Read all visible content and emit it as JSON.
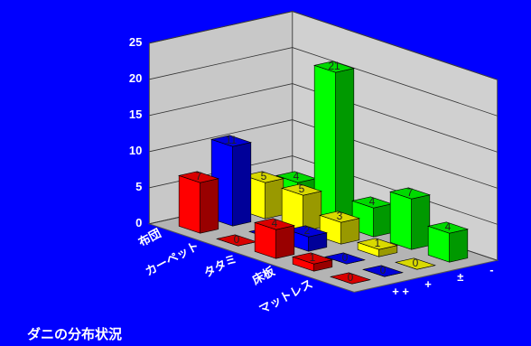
{
  "chart_data": {
    "type": "bar3d",
    "title": "ダニの分布状況",
    "categories": [
      "布団",
      "カーペット",
      "タタミ",
      "床板",
      "マットレス"
    ],
    "series": [
      {
        "name": "+ +",
        "color": "#ff0000",
        "values": [
          7,
          0,
          4,
          1,
          0
        ]
      },
      {
        "name": "+",
        "color": "#0000ff",
        "values": [
          11,
          0,
          2,
          0,
          0
        ]
      },
      {
        "name": "±",
        "color": "#ffff00",
        "values": [
          5,
          5,
          3,
          1,
          0
        ]
      },
      {
        "name": "-",
        "color": "#00ff00",
        "values": [
          4,
          21,
          4,
          7,
          4
        ]
      }
    ],
    "ylim": [
      0,
      25
    ],
    "yticks": [
      0,
      5,
      10,
      15,
      20,
      25
    ],
    "grid": true
  }
}
